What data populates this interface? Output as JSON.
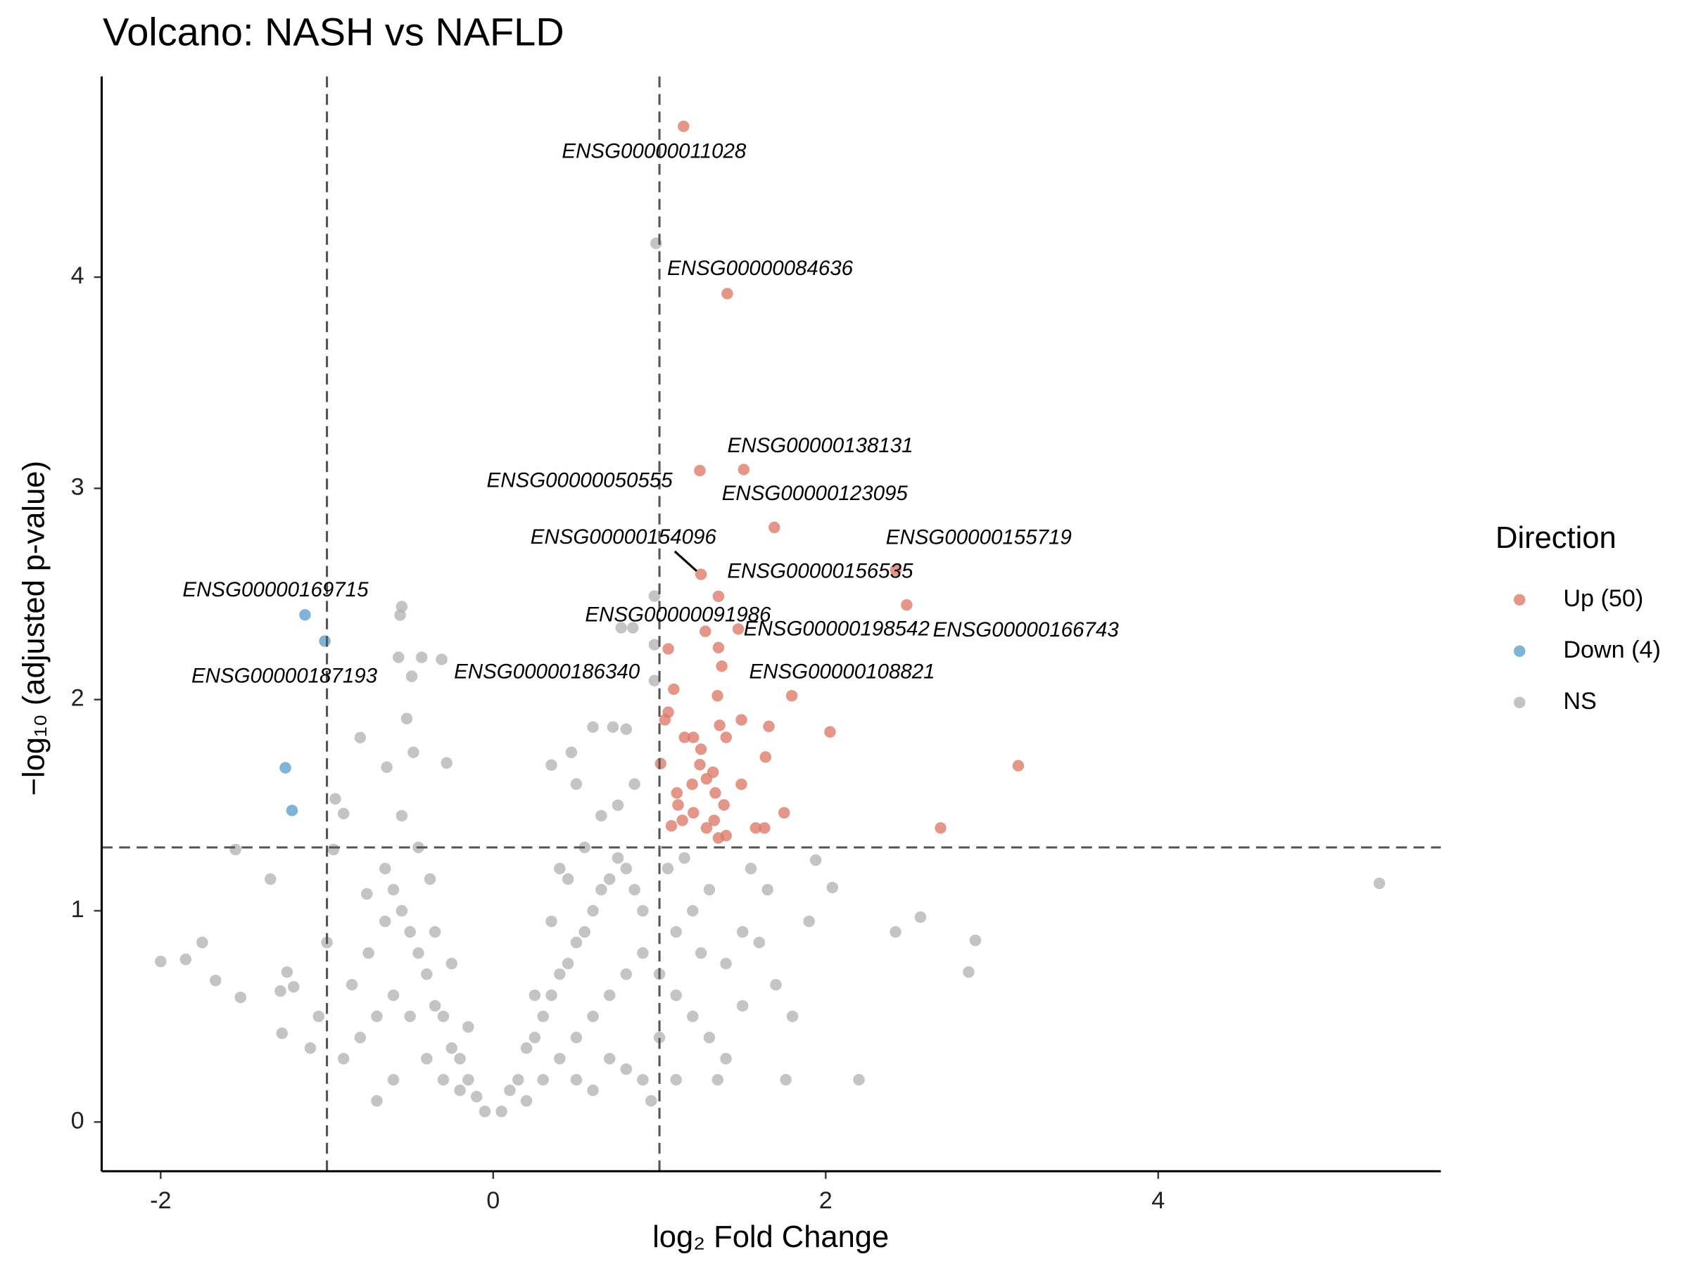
{
  "chart_data": {
    "type": "scatter",
    "title": "Volcano: NASH vs NAFLD",
    "x_label": "log₂ Fold Change",
    "y_label": "−log₁₀ (adjusted p-value)",
    "legend_title": "Direction",
    "legend_position": "right",
    "xlim": [
      -2.355,
      5.7
    ],
    "ylim": [
      -0.233,
      4.95
    ],
    "xticks": [
      -2,
      0,
      2,
      4
    ],
    "yticks": [
      0,
      1,
      2,
      3,
      4
    ],
    "vlines": [
      -1,
      1
    ],
    "hline": 1.3,
    "grid": false,
    "series": [
      {
        "name": "Up (50)",
        "color": "#dc7a68",
        "x": [
          1.145,
          1.408,
          1.507,
          1.243,
          1.691,
          2.421,
          1.25,
          1.355,
          2.487,
          1.276,
          1.474,
          1.796,
          1.053,
          1.355,
          1.375,
          1.086,
          1.349,
          1.053,
          1.033,
          1.493,
          1.658,
          1.362,
          1.151,
          1.204,
          1.401,
          1.25,
          2.026,
          1.638,
          3.158,
          1.007,
          1.322,
          1.283,
          1.493,
          1.197,
          1.105,
          1.336,
          1.388,
          1.112,
          1.204,
          1.243,
          1.75,
          1.138,
          1.329,
          1.072,
          1.283,
          1.579,
          1.632,
          1.401,
          1.355,
          2.691
        ],
        "values": [
          4.714,
          3.922,
          3.089,
          3.084,
          2.815,
          2.613,
          2.593,
          2.489,
          2.448,
          2.323,
          2.334,
          2.018,
          2.24,
          2.246,
          2.158,
          2.049,
          2.018,
          1.94,
          1.904,
          1.904,
          1.873,
          1.878,
          1.821,
          1.821,
          1.821,
          1.765,
          1.847,
          1.728,
          1.687,
          1.697,
          1.656,
          1.625,
          1.599,
          1.599,
          1.558,
          1.558,
          1.501,
          1.501,
          1.464,
          1.692,
          1.464,
          1.428,
          1.428,
          1.402,
          1.392,
          1.392,
          1.392,
          1.356,
          1.345,
          1.392
        ],
        "point_labels": [
          "ENSG00000011028",
          "ENSG00000084636",
          "ENSG00000138131",
          "ENSG00000050555",
          "ENSG00000123095",
          "ENSG00000155719",
          "ENSG00000154096",
          "ENSG00000156535",
          "ENSG00000166743",
          "ENSG00000091986",
          "ENSG00000198542",
          "ENSG00000108821",
          "ENSG00000186340",
          null,
          null,
          null,
          null,
          null,
          null,
          null,
          null,
          null,
          null,
          null,
          null,
          null,
          null,
          null,
          null,
          null,
          null,
          null,
          null,
          null,
          null,
          null,
          null,
          null,
          null,
          null,
          null,
          null,
          null,
          null,
          null,
          null,
          null,
          null,
          null,
          null
        ]
      },
      {
        "name": "Down (4)",
        "color": "#5b9fcd",
        "x": [
          -1.132,
          -1.013,
          -1.25,
          -1.21
        ],
        "values": [
          2.401,
          2.277,
          1.677,
          1.475
        ],
        "point_labels": [
          "ENSG00000169715",
          "ENSG00000187193",
          null,
          null
        ]
      },
      {
        "name": "NS",
        "color": "#b3b3b3",
        "x": [
          5.33,
          -2.0,
          -1.85,
          -1.75,
          -1.67,
          -1.52,
          -1.55,
          -1.34,
          -1.28,
          -1.27,
          -1.24,
          -1.2,
          2.42,
          2.57,
          2.86,
          2.9,
          2.2,
          1.76,
          2.04,
          1.94,
          -0.55,
          -0.56,
          -0.57,
          -0.43,
          -0.31,
          -0.49,
          -0.8,
          -0.52,
          0.98,
          0.97,
          0.97,
          0.97,
          0.77,
          0.84,
          0.6,
          0.72,
          0.8,
          -0.48,
          -0.28,
          -0.64,
          -0.95,
          -0.96,
          0.35,
          0.47,
          -0.9,
          -0.76,
          -0.65,
          -0.05,
          -0.1,
          -0.15,
          -0.2,
          -0.25,
          -0.3,
          -0.35,
          -0.4,
          -0.45,
          -0.5,
          -0.55,
          -0.6,
          -0.65,
          -0.4,
          -0.5,
          -0.6,
          -0.7,
          -0.8,
          -0.9,
          -0.75,
          -0.3,
          -0.2,
          -0.35,
          -0.45,
          -0.55,
          -0.38,
          -0.25,
          -0.15,
          -0.6,
          -0.7,
          -0.85,
          -1.05,
          -1.0,
          -1.1,
          0.05,
          0.1,
          0.15,
          0.2,
          0.25,
          0.3,
          0.35,
          0.4,
          0.45,
          0.5,
          0.55,
          0.6,
          0.65,
          0.7,
          0.75,
          0.8,
          0.85,
          0.9,
          0.3,
          0.4,
          0.5,
          0.6,
          0.7,
          0.8,
          0.9,
          1.0,
          1.1,
          1.2,
          1.3,
          1.4,
          0.5,
          0.6,
          0.7,
          0.8,
          0.9,
          1.0,
          1.1,
          1.2,
          1.3,
          1.5,
          1.6,
          1.4,
          1.5,
          1.7,
          1.8,
          0.2,
          0.25,
          0.35,
          0.45,
          0.55,
          0.65,
          0.75,
          0.85,
          0.4,
          0.5,
          1.05,
          1.15,
          1.25,
          1.55,
          1.65,
          1.9,
          1.35,
          0.95,
          1.1
        ],
        "values": [
          1.13,
          0.76,
          0.77,
          0.85,
          0.67,
          0.59,
          1.29,
          1.15,
          0.62,
          0.42,
          0.71,
          0.64,
          0.9,
          0.97,
          0.71,
          0.86,
          0.2,
          0.2,
          1.11,
          1.24,
          2.44,
          2.4,
          2.2,
          2.2,
          2.19,
          2.11,
          1.82,
          1.91,
          4.16,
          2.49,
          2.26,
          2.09,
          2.34,
          2.34,
          1.87,
          1.87,
          1.86,
          1.75,
          1.7,
          1.68,
          1.53,
          1.29,
          1.69,
          1.75,
          1.46,
          1.08,
          0.95,
          0.05,
          0.12,
          0.2,
          0.3,
          0.35,
          0.5,
          0.55,
          0.7,
          0.8,
          0.9,
          1.0,
          1.1,
          1.2,
          0.3,
          0.5,
          0.6,
          0.5,
          0.4,
          0.3,
          0.8,
          0.2,
          0.15,
          0.9,
          1.3,
          1.45,
          1.15,
          0.75,
          0.45,
          0.2,
          0.1,
          0.65,
          0.5,
          0.85,
          0.35,
          0.05,
          0.15,
          0.2,
          0.35,
          0.4,
          0.5,
          0.6,
          0.7,
          0.75,
          0.85,
          0.9,
          1.0,
          1.1,
          1.15,
          1.25,
          1.2,
          1.1,
          1.0,
          0.2,
          0.3,
          0.4,
          0.5,
          0.6,
          0.7,
          0.8,
          0.7,
          0.6,
          0.5,
          0.4,
          0.3,
          0.2,
          0.15,
          0.3,
          0.25,
          0.2,
          0.4,
          0.9,
          1.0,
          1.1,
          0.9,
          0.85,
          0.75,
          0.55,
          0.65,
          0.5,
          0.1,
          0.6,
          0.95,
          1.15,
          1.3,
          1.45,
          1.5,
          1.6,
          1.2,
          1.6,
          1.2,
          1.25,
          0.8,
          1.2,
          1.1,
          0.95,
          0.2,
          0.1,
          0.2
        ]
      }
    ]
  }
}
